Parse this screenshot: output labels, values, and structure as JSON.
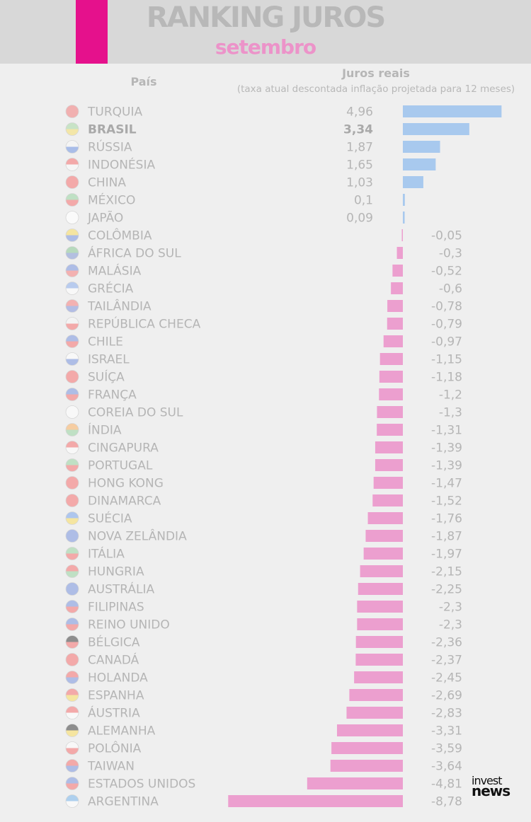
{
  "header": {
    "title": "RANKING JUROS",
    "subtitle": "setembro"
  },
  "columns": {
    "country": "País",
    "rate": "Juros reais",
    "rate_note": "(taxa atual descontada inflação projetada para 12 meses)"
  },
  "logo": {
    "line1": "invest",
    "line2": "news"
  },
  "colors": {
    "accent": "#e5118c",
    "positive": "#a8c9ee",
    "negative": "#ec9fcf",
    "label": "#b5b5b5"
  },
  "chart_data": {
    "type": "bar",
    "orientation": "horizontal",
    "categories": [
      "TURQUIA",
      "BRASIL",
      "RÚSSIA",
      "INDONÉSIA",
      "CHINA",
      "MÉXICO",
      "JAPÃO",
      "COLÔMBIA",
      "ÁFRICA DO SUL",
      "MALÁSIA",
      "GRÉCIA",
      "TAILÂNDIA",
      "REPÚBLICA CHECA",
      "CHILE",
      "ISRAEL",
      "SUÍÇA",
      "FRANÇA",
      "COREIA DO SUL",
      "ÍNDIA",
      "CINGAPURA",
      "PORTUGAL",
      "HONG KONG",
      "DINAMARCA",
      "SUÉCIA",
      "NOVA ZELÂNDIA",
      "ITÁLIA",
      "HUNGRIA",
      "AUSTRÁLIA",
      "FILIPINAS",
      "REINO UNIDO",
      "BÉLGICA",
      "CANADÁ",
      "HOLANDA",
      "ESPANHA",
      "ÁUSTRIA",
      "ALEMANHA",
      "POLÔNIA",
      "TAIWAN",
      "ESTADOS UNIDOS",
      "ARGENTINA"
    ],
    "values": [
      4.96,
      3.34,
      1.87,
      1.65,
      1.03,
      0.1,
      0.09,
      -0.05,
      -0.3,
      -0.52,
      -0.6,
      -0.78,
      -0.79,
      -0.97,
      -1.15,
      -1.18,
      -1.2,
      -1.3,
      -1.31,
      -1.39,
      -1.39,
      -1.47,
      -1.52,
      -1.76,
      -1.87,
      -1.97,
      -2.15,
      -2.25,
      -2.3,
      -2.3,
      -2.36,
      -2.37,
      -2.45,
      -2.69,
      -2.83,
      -3.31,
      -3.59,
      -3.64,
      -4.81,
      -8.78
    ],
    "value_labels": [
      "4,96",
      "3,34",
      "1,87",
      "1,65",
      "1,03",
      "0,1",
      "0,09",
      "-0,05",
      "-0,3",
      "-0,52",
      "-0,6",
      "-0,78",
      "-0,79",
      "-0,97",
      "-1,15",
      "-1,18",
      "-1,2",
      "-1,3",
      "-1,31",
      "-1,39",
      "-1,39",
      "-1,47",
      "-1,52",
      "-1,76",
      "-1,87",
      "-1,97",
      "-2,15",
      "-2,25",
      "-2,3",
      "-2,3",
      "-2,36",
      "-2,37",
      "-2,45",
      "-2,69",
      "-2,83",
      "-3,31",
      "-3,59",
      "-3,64",
      "-4,81",
      "-8,78"
    ],
    "flag_colors": [
      [
        "#f1b0b0",
        "#f1b0b0"
      ],
      [
        "#c8e3c6",
        "#f3e6a8"
      ],
      [
        "#f4f4f4",
        "#a9bde8"
      ],
      [
        "#f3a9a9",
        "#f6f6f6"
      ],
      [
        "#f3a9a9",
        "#f3a9a9"
      ],
      [
        "#bfe0c4",
        "#f3a9a9"
      ],
      [
        "#fafafa",
        "#fafafa"
      ],
      [
        "#f5e5a0",
        "#aebde6"
      ],
      [
        "#b7d9bd",
        "#b3bfe0"
      ],
      [
        "#aebde6",
        "#f3b1b1"
      ],
      [
        "#b8cbee",
        "#f8f8f8"
      ],
      [
        "#f3b1b1",
        "#b3bde4"
      ],
      [
        "#f3f3f3",
        "#f3a9a9"
      ],
      [
        "#aebde6",
        "#f3a9a9"
      ],
      [
        "#f8f8f8",
        "#aebde6"
      ],
      [
        "#f3a9a9",
        "#f3a9a9"
      ],
      [
        "#aebde6",
        "#f3a9a9"
      ],
      [
        "#f8f8f8",
        "#f8f8f8"
      ],
      [
        "#f6cda2",
        "#bfe0c4"
      ],
      [
        "#f3a9a9",
        "#f8f8f8"
      ],
      [
        "#bfe0c4",
        "#f3a9a9"
      ],
      [
        "#f3a9a9",
        "#f3a9a9"
      ],
      [
        "#f3a9a9",
        "#f3a9a9"
      ],
      [
        "#aec6ee",
        "#f5e5a0"
      ],
      [
        "#aebde6",
        "#aebde6"
      ],
      [
        "#bfe0c4",
        "#f3a9a9"
      ],
      [
        "#f3a9a9",
        "#bfe0c4"
      ],
      [
        "#aebde6",
        "#aebde6"
      ],
      [
        "#aebde6",
        "#f3a9a9"
      ],
      [
        "#aebde6",
        "#f3a9a9"
      ],
      [
        "#8d8d8d",
        "#f3a9a9"
      ],
      [
        "#f3a9a9",
        "#f3a9a9"
      ],
      [
        "#f3a9a9",
        "#aebde6"
      ],
      [
        "#f3a9a9",
        "#f5e5a0"
      ],
      [
        "#f3a9a9",
        "#f8f8f8"
      ],
      [
        "#8d8d8d",
        "#f5e5a0"
      ],
      [
        "#f8f8f8",
        "#f3a9a9"
      ],
      [
        "#f3a9a9",
        "#aebde6"
      ],
      [
        "#aebde6",
        "#f3a9a9"
      ],
      [
        "#aed0ee",
        "#f8f8f8"
      ]
    ],
    "highlight": "BRASIL",
    "xlabel": "",
    "ylabel": "Juros reais",
    "xlim": [
      -8.78,
      4.96
    ],
    "grid": false,
    "legend": "none"
  }
}
